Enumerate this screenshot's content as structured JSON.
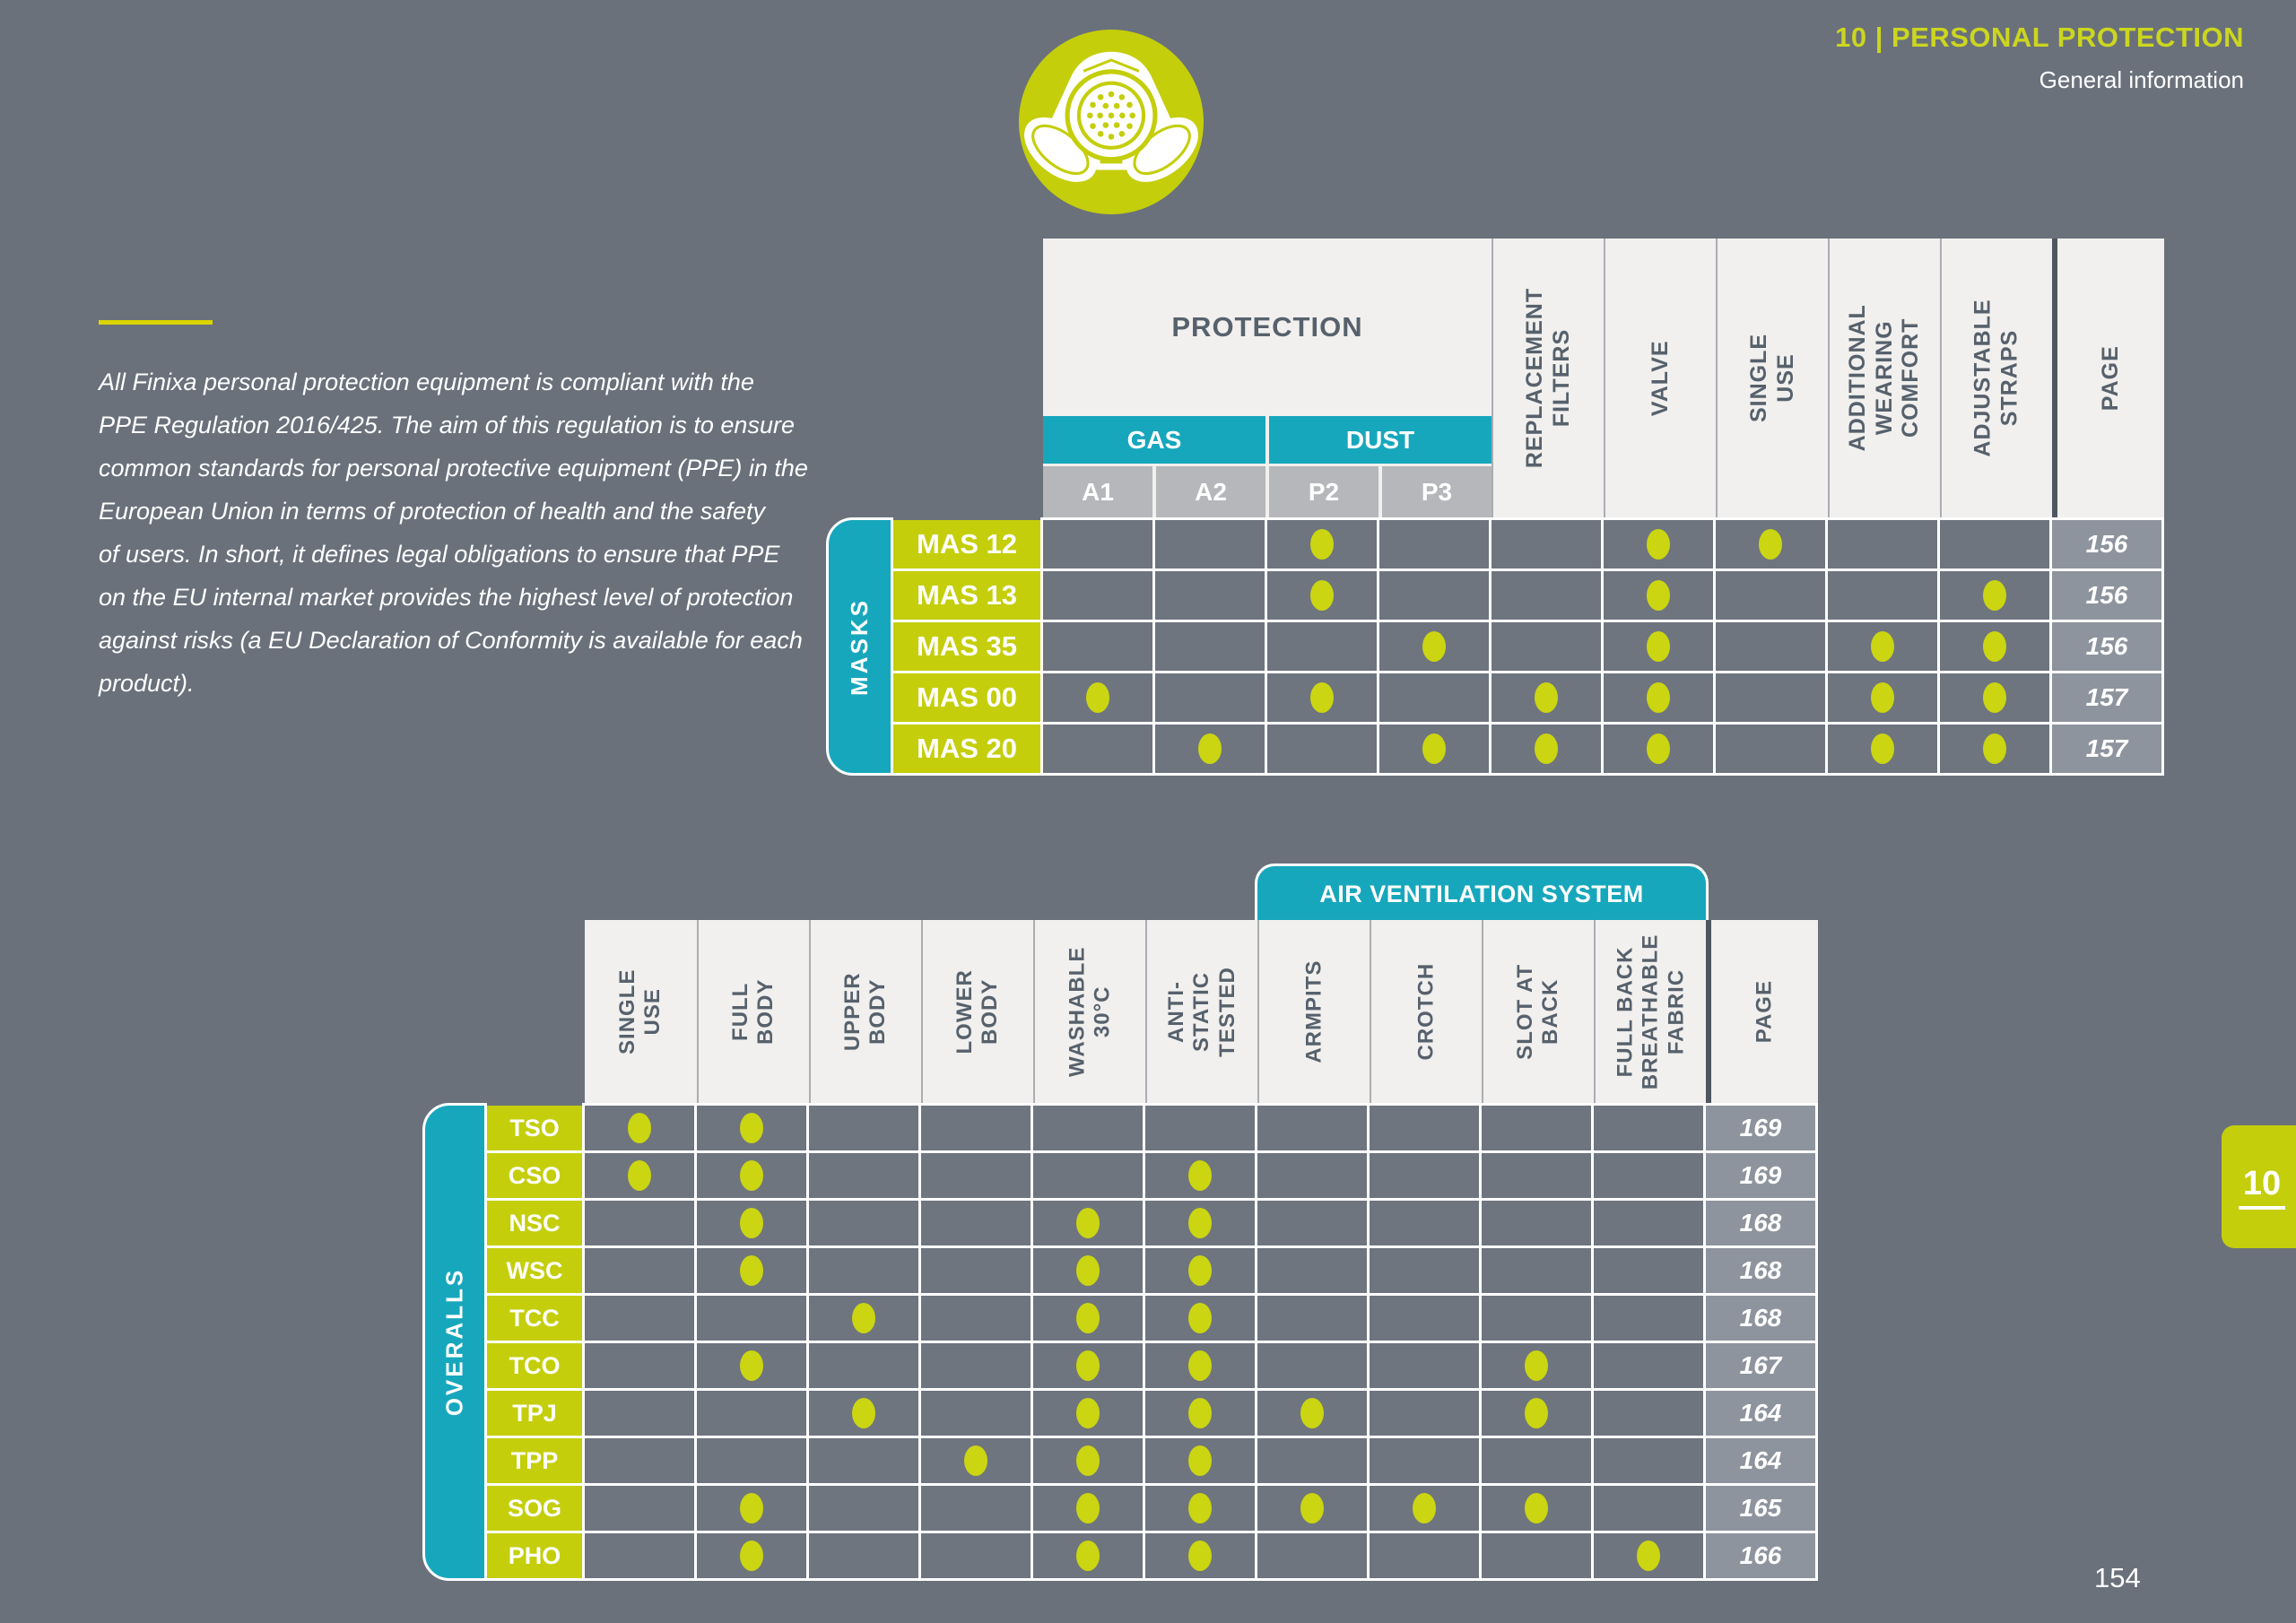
{
  "header": {
    "title": "10 | PERSONAL PROTECTION",
    "subtitle": "General information"
  },
  "intro": "All Finixa personal protection equipment is compliant with the\nPPE Regulation 2016/425. The aim of this regulation is to ensure\ncommon standards for personal protective equipment (PPE) in the\nEuropean Union in terms of protection of health and the safety\nof users. In short,  it defines legal obligations to ensure that PPE\non the EU internal market provides the highest level of protection\nagainst risks (a EU Declaration of Conformity is available for each\nproduct).",
  "icon": "respirator-mask-icon",
  "colors": {
    "accent_yellow": "#c4ce0b",
    "accent_teal": "#17a7bc",
    "page_background": "#6a717b",
    "header_background": "#f1f0ee"
  },
  "masks_table": {
    "group_label": "MASKS",
    "protection_header": "PROTECTION",
    "gas_label": "GAS",
    "dust_label": "DUST",
    "sub_columns": [
      "A1",
      "A2",
      "P2",
      "P3"
    ],
    "feature_columns": [
      "REPLACEMENT\nFILTERS",
      "VALVE",
      "SINGLE USE",
      "ADDITIONAL\nWEARING COMFORT",
      "ADJUSTABLE STRAPS"
    ],
    "page_column": "PAGE",
    "rows": [
      {
        "label": "MAS 12",
        "dots": [
          0,
          0,
          1,
          0,
          0,
          1,
          1,
          0,
          0
        ],
        "page": "156"
      },
      {
        "label": "MAS 13",
        "dots": [
          0,
          0,
          1,
          0,
          0,
          1,
          0,
          0,
          1
        ],
        "page": "156"
      },
      {
        "label": "MAS 35",
        "dots": [
          0,
          0,
          0,
          1,
          0,
          1,
          0,
          1,
          1
        ],
        "page": "156"
      },
      {
        "label": "MAS 00",
        "dots": [
          1,
          0,
          1,
          0,
          1,
          1,
          0,
          1,
          1
        ],
        "page": "157"
      },
      {
        "label": "MAS 20",
        "dots": [
          0,
          1,
          0,
          1,
          1,
          1,
          0,
          1,
          1
        ],
        "page": "157"
      }
    ]
  },
  "overalls_table": {
    "group_label": "OVERALLS",
    "air_ventilation_label": "AIR VENTILATION SYSTEM",
    "columns": [
      "SINGLE USE",
      "FULL BODY",
      "UPPER BODY",
      "LOWER BODY",
      "WASHABLE\n30°C",
      "ANTI-STATIC\nTESTED",
      "ARMPITS",
      "CROTCH",
      "SLOT AT\nBACK",
      "FULL BACK\nBREATHABLE\nFABRIC"
    ],
    "page_column": "PAGE",
    "rows": [
      {
        "label": "TSO",
        "dots": [
          1,
          1,
          0,
          0,
          0,
          0,
          0,
          0,
          0,
          0
        ],
        "page": "169"
      },
      {
        "label": "CSO",
        "dots": [
          1,
          1,
          0,
          0,
          0,
          1,
          0,
          0,
          0,
          0
        ],
        "page": "169"
      },
      {
        "label": "NSC",
        "dots": [
          0,
          1,
          0,
          0,
          1,
          1,
          0,
          0,
          0,
          0
        ],
        "page": "168"
      },
      {
        "label": "WSC",
        "dots": [
          0,
          1,
          0,
          0,
          1,
          1,
          0,
          0,
          0,
          0
        ],
        "page": "168"
      },
      {
        "label": "TCC",
        "dots": [
          0,
          0,
          1,
          0,
          1,
          1,
          0,
          0,
          0,
          0
        ],
        "page": "168"
      },
      {
        "label": "TCO",
        "dots": [
          0,
          1,
          0,
          0,
          1,
          1,
          0,
          0,
          1,
          0
        ],
        "page": "167"
      },
      {
        "label": "TPJ",
        "dots": [
          0,
          0,
          1,
          0,
          1,
          1,
          1,
          0,
          1,
          0
        ],
        "page": "164"
      },
      {
        "label": "TPP",
        "dots": [
          0,
          0,
          0,
          1,
          1,
          1,
          0,
          0,
          0,
          0
        ],
        "page": "164"
      },
      {
        "label": "SOG",
        "dots": [
          0,
          1,
          0,
          0,
          1,
          1,
          1,
          1,
          1,
          0
        ],
        "page": "165"
      },
      {
        "label": "PHO",
        "dots": [
          0,
          1,
          0,
          0,
          1,
          1,
          0,
          0,
          0,
          1
        ],
        "page": "166"
      }
    ]
  },
  "footer": {
    "page_number": "154",
    "chapter_tab": "10"
  }
}
